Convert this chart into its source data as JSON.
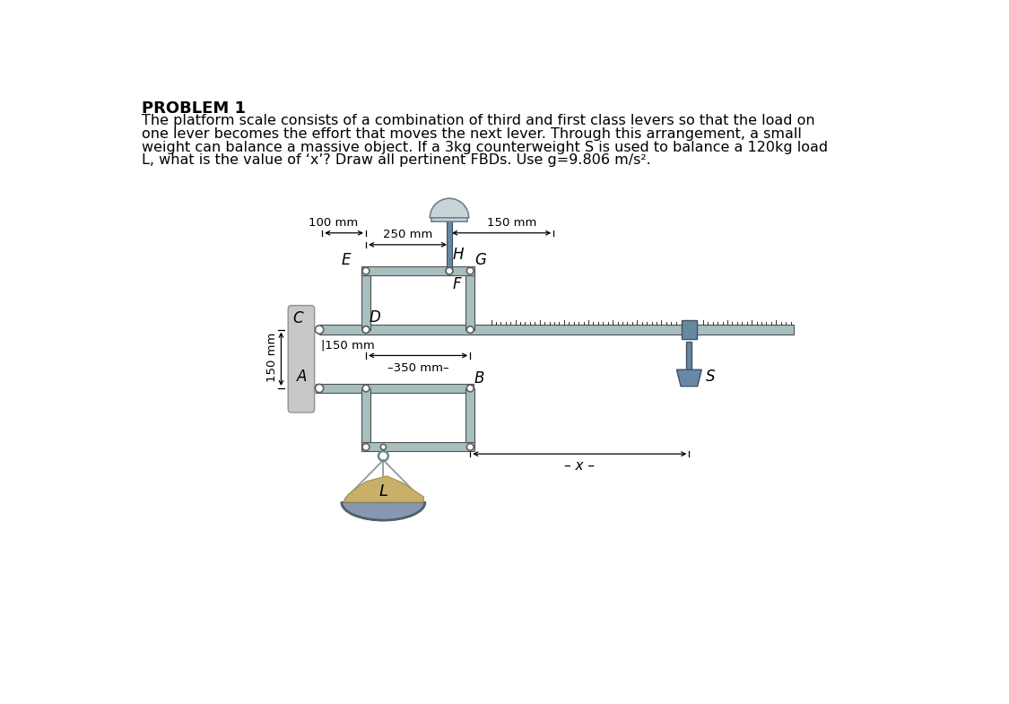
{
  "title": "PROBLEM 1",
  "problem_text_line1": "The platform scale consists of a combination of third and first class levers so that the load on",
  "problem_text_line2": "one lever becomes the effort that moves the next lever. Through this arrangement, a small",
  "problem_text_line3": "weight can balance a massive object. If a 3kg counterweight S is used to balance a 120kg load",
  "problem_text_line4": "L, what is the value of ‘x’? Draw all pertinent FBDs. Use g=9.806 m/s².",
  "bg_color": "#ffffff",
  "lever_color": "#a8bfc0",
  "pin_color": "#888888",
  "scale_color": "#6888a0",
  "weight_color": "#c0aa78",
  "bowl_color": "#8898b0",
  "text_color": "#000000",
  "wall_color": "#c8c8c8",
  "dim_color": "#000000"
}
